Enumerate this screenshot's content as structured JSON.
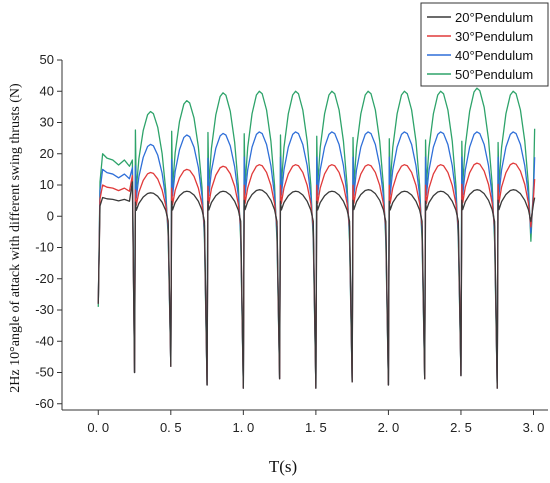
{
  "chart_data": {
    "type": "line",
    "xlabel": "T(s)",
    "ylabel": "2Hz 10°angle of attack with different swing thrusts (N)",
    "xlim": [
      -0.25,
      3.1
    ],
    "ylim": [
      -62,
      50
    ],
    "xticks": [
      0.0,
      0.5,
      1.0,
      1.5,
      2.0,
      2.5,
      3.0
    ],
    "xtick_labels": [
      "0. 0",
      "0. 5",
      "1. 0",
      "1. 5",
      "2. 0",
      "2. 5",
      "3. 0"
    ],
    "yticks": [
      50,
      40,
      30,
      20,
      10,
      0,
      -10,
      -20,
      -30,
      -40,
      -50,
      -60
    ],
    "ytick_labels": [
      "50",
      "40",
      "30",
      "20",
      "10",
      "0",
      "-10",
      "-20",
      "-30",
      "-40",
      "-50",
      "-60"
    ],
    "legend_position": "top-right",
    "grid": false,
    "cycle_period_s": 0.25,
    "trough_times_s": [
      0.0,
      0.25,
      0.5,
      0.75,
      1.0,
      1.25,
      1.5,
      1.75,
      2.0,
      2.25,
      2.5,
      2.75,
      3.0
    ],
    "series": [
      {
        "name": "20°Pendulum",
        "color": "#3a3a3a",
        "peak_values": [
          6,
          7.5,
          8,
          8,
          8.5,
          8,
          8,
          8.5,
          8,
          8,
          8.5,
          8.5
        ],
        "trough_values": [
          -28,
          -50,
          -48,
          -54,
          -55,
          -52,
          -55,
          -53,
          -54,
          -52,
          -51,
          -55,
          4
        ]
      },
      {
        "name": "30°Pendulum",
        "color": "#e03a3a",
        "peak_values": [
          10,
          14,
          15,
          16,
          16.5,
          16.5,
          16.5,
          16.5,
          16.5,
          16.5,
          17,
          17
        ],
        "trough_values": [
          -28,
          -50,
          -48,
          -54,
          -55,
          -52,
          -55,
          -53,
          -54,
          -52,
          -51,
          -55,
          6
        ]
      },
      {
        "name": "40°Pendulum",
        "color": "#2f6fd8",
        "peak_values": [
          15,
          23,
          26,
          26.5,
          27,
          27,
          27,
          27,
          27,
          27,
          27,
          27
        ],
        "trough_values": [
          -28,
          -50,
          -48,
          -54,
          -55,
          -52,
          -55,
          -53,
          -54,
          -52,
          -51,
          -55,
          8
        ]
      },
      {
        "name": "50°Pendulum",
        "color": "#2ea36a",
        "peak_values": [
          20,
          33.5,
          37,
          39.5,
          40,
          40,
          40,
          40,
          40,
          40,
          41,
          40
        ],
        "trough_values": [
          -29,
          -50,
          -48,
          -54,
          -55,
          -52,
          -55,
          -53,
          -54,
          -52,
          -51,
          -55,
          10
        ]
      }
    ]
  }
}
